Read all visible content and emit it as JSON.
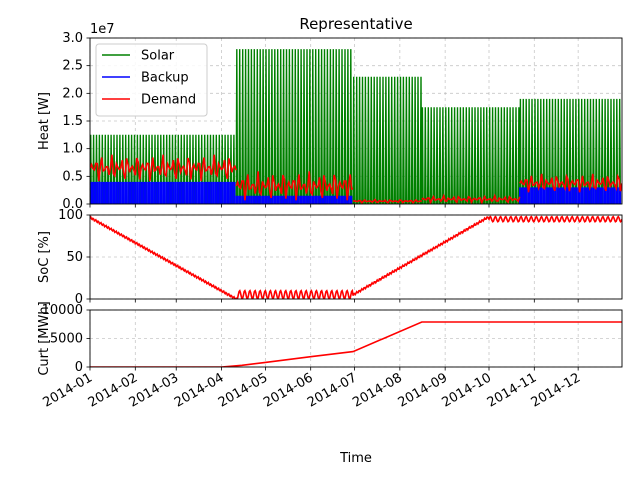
{
  "chart_data": [
    {
      "type": "line",
      "title": "Representative",
      "ylabel": "Heat [W]",
      "y_scale_label": "1e7",
      "ylim": [
        0,
        30000000
      ],
      "y_ticks": [
        {
          "value": 0,
          "label": "0.0"
        },
        {
          "value": 5000000,
          "label": "0.5"
        },
        {
          "value": 10000000,
          "label": "1.0"
        },
        {
          "value": 15000000,
          "label": "1.5"
        },
        {
          "value": 20000000,
          "label": "2.0"
        },
        {
          "value": 25000000,
          "label": "2.5"
        },
        {
          "value": 30000000,
          "label": "3.0"
        }
      ],
      "grid": true,
      "legend_position": "top-left",
      "series": [
        {
          "name": "Solar",
          "color": "#008000"
        },
        {
          "name": "Backup",
          "color": "#0000ff"
        },
        {
          "name": "Demand",
          "color": "#ff0000"
        }
      ],
      "periods": [
        {
          "start": "2014-01-01",
          "end": "2014-04-11",
          "solar_peak": 12500000,
          "backup_max": 4000000,
          "demand_min": 4000000,
          "demand_max": 9000000
        },
        {
          "start": "2014-04-11",
          "end": "2014-06-30",
          "solar_peak": 28000000,
          "backup_max": 1500000,
          "demand_min": 500000,
          "demand_max": 6000000
        },
        {
          "start": "2014-06-30",
          "end": "2014-08-16",
          "solar_peak": 23000000,
          "backup_max": 0,
          "demand_min": 200000,
          "demand_max": 800000
        },
        {
          "start": "2014-08-16",
          "end": "2014-10-22",
          "solar_peak": 17500000,
          "backup_max": 0,
          "demand_min": 200000,
          "demand_max": 1500000
        },
        {
          "start": "2014-10-22",
          "end": "2014-12-31",
          "solar_peak": 19000000,
          "backup_max": 3000000,
          "demand_min": 2000000,
          "demand_max": 5500000
        }
      ]
    },
    {
      "type": "line",
      "ylabel": "SoC [%]",
      "ylim": [
        0,
        100
      ],
      "y_ticks": [
        {
          "value": 0,
          "label": "0"
        },
        {
          "value": 50,
          "label": "50"
        },
        {
          "value": 100,
          "label": "100"
        }
      ],
      "grid": true,
      "series": [
        {
          "color": "#ff0000",
          "x": [
            "2014-01-01",
            "2014-04-11",
            "2014-06-30",
            "2014-10-01",
            "2014-12-31"
          ],
          "y": [
            97,
            0,
            5,
            98,
            95
          ]
        }
      ]
    },
    {
      "type": "line",
      "ylabel": "Curt [MWh]",
      "xlabel": "Time",
      "ylim": [
        0,
        10000
      ],
      "y_ticks": [
        {
          "value": 0,
          "label": "0"
        },
        {
          "value": 5000,
          "label": "5000"
        },
        {
          "value": 10000,
          "label": "10000"
        }
      ],
      "x_ticks": [
        "2014-01",
        "2014-02",
        "2014-03",
        "2014-04",
        "2014-05",
        "2014-06",
        "2014-07",
        "2014-08",
        "2014-09",
        "2014-10",
        "2014-11",
        "2014-12"
      ],
      "grid": true,
      "series": [
        {
          "color": "#ff0000",
          "x": [
            "2014-01-01",
            "2014-04-01",
            "2014-04-15",
            "2014-05-01",
            "2014-06-01",
            "2014-06-30",
            "2014-08-16",
            "2014-12-31"
          ],
          "y": [
            0,
            0,
            300,
            800,
            1800,
            2700,
            7900,
            7900
          ]
        }
      ]
    }
  ]
}
